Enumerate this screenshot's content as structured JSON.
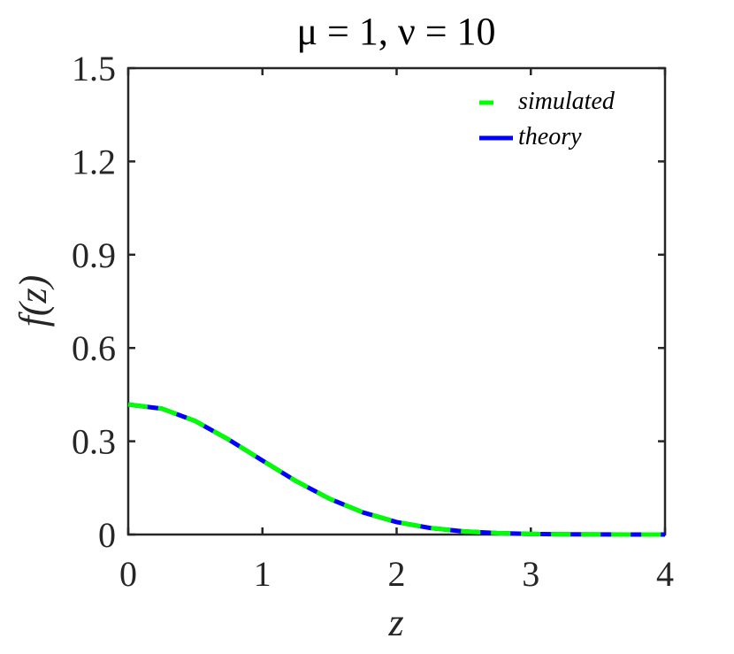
{
  "chart_data": {
    "type": "line",
    "title": "μ = 1, ν = 10",
    "xlabel": "z",
    "ylabel": "f(z)",
    "xlim": [
      0,
      4
    ],
    "ylim": [
      0,
      1.5
    ],
    "xticks": [
      0,
      1,
      2,
      3,
      4
    ],
    "xtick_labels": [
      "0",
      "1",
      "2",
      "3",
      "4"
    ],
    "yticks": [
      0,
      0.3,
      0.6,
      0.9,
      1.2,
      1.5
    ],
    "ytick_labels": [
      "0",
      "0.3",
      "0.6",
      "0.9",
      "1.2",
      "1.5"
    ],
    "grid": false,
    "legend_position": "top-right",
    "x": [
      0,
      0.25,
      0.5,
      0.75,
      1.0,
      1.25,
      1.5,
      1.75,
      2.0,
      2.25,
      2.5,
      2.75,
      3.0,
      3.25,
      3.5,
      3.75,
      4.0
    ],
    "series": [
      {
        "name": "simulated",
        "color": "#00ff00",
        "style": "dashed",
        "values": [
          0.418,
          0.405,
          0.365,
          0.305,
          0.238,
          0.172,
          0.115,
          0.071,
          0.04,
          0.021,
          0.01,
          0.0045,
          0.0018,
          0.0007,
          0.0002,
          0.0001,
          0.0
        ]
      },
      {
        "name": "theory",
        "color": "#0000ff",
        "style": "solid",
        "values": [
          0.418,
          0.405,
          0.365,
          0.305,
          0.238,
          0.172,
          0.115,
          0.071,
          0.04,
          0.021,
          0.01,
          0.0045,
          0.0018,
          0.0007,
          0.0002,
          0.0001,
          0.0
        ]
      }
    ]
  }
}
